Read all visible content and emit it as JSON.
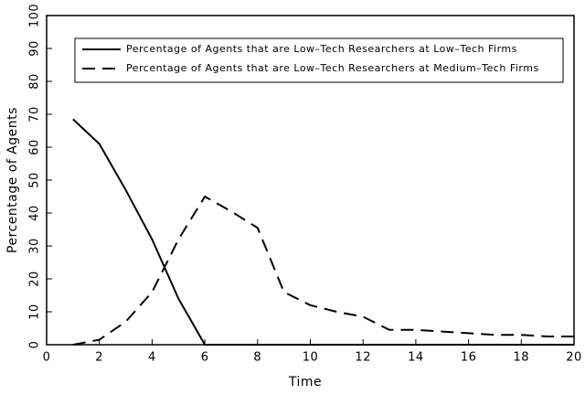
{
  "chart_data": {
    "type": "line",
    "xlabel": "Time",
    "ylabel": "Percentage of Agents",
    "x": [
      1,
      2,
      3,
      4,
      5,
      6,
      7,
      8,
      9,
      10,
      11,
      12,
      13,
      14,
      15,
      16,
      17,
      18,
      19,
      20
    ],
    "series": [
      {
        "name": "Percentage of Agents that are Low–Tech Researchers at Low–Tech Firms",
        "color": "#000000",
        "dash": "solid",
        "values": [
          68.5,
          61,
          47,
          32,
          14,
          0,
          0,
          0,
          0,
          0,
          0,
          0,
          0,
          0,
          0,
          0,
          0,
          0,
          0,
          0
        ]
      },
      {
        "name": "Percentage of Agents that are Low–Tech Researchers at Medium–Tech Firms",
        "color": "#000000",
        "dash": "dashed",
        "values": [
          0,
          1.5,
          7,
          16,
          32,
          45,
          40.5,
          35.5,
          16,
          12,
          10,
          8.5,
          4.5,
          4.5,
          4,
          3.5,
          3,
          3,
          2.5,
          2.5
        ]
      }
    ],
    "xlim": [
      0,
      20
    ],
    "xticks": [
      0,
      2,
      4,
      6,
      8,
      10,
      12,
      14,
      16,
      18,
      20
    ],
    "ylim": [
      0,
      100
    ],
    "yticks": [
      0,
      10,
      20,
      30,
      40,
      50,
      60,
      70,
      80,
      90,
      100
    ],
    "legend": "top-right"
  }
}
